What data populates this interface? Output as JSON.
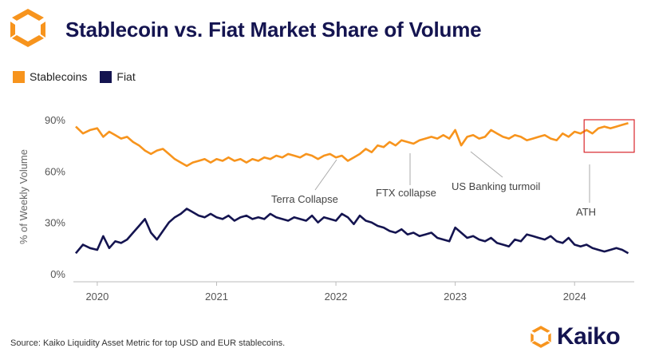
{
  "header": {
    "title": "Stablecoin vs. Fiat Market Share of Volume"
  },
  "footer": {
    "source": "Source: Kaiko Liquidity Asset Metric for top USD and EUR stablecoins.",
    "brand": "Kaiko"
  },
  "colors": {
    "stablecoins": "#f7941d",
    "fiat": "#141450",
    "highlight_box": "#d9262c"
  },
  "chart_data": {
    "type": "line",
    "title": "Stablecoin vs. Fiat Market Share of Volume",
    "xlabel": "",
    "ylabel": "% of Weekly Volume",
    "xlim": [
      2019.8,
      2024.5
    ],
    "ylim": [
      0,
      90
    ],
    "y_ticks": [
      0,
      30,
      60,
      90
    ],
    "y_tick_labels": [
      "0%",
      "30%",
      "60%",
      "90%"
    ],
    "x_ticks": [
      2020,
      2021,
      2022,
      2023,
      2024
    ],
    "x_tick_labels": [
      "2020",
      "2021",
      "2022",
      "2023",
      "2024"
    ],
    "grid": false,
    "legend_position": "top-left",
    "series": [
      {
        "name": "Stablecoins",
        "x": [
          2019.82,
          2019.88,
          2019.94,
          2020.0,
          2020.05,
          2020.1,
          2020.15,
          2020.2,
          2020.25,
          2020.3,
          2020.35,
          2020.4,
          2020.45,
          2020.5,
          2020.55,
          2020.6,
          2020.65,
          2020.7,
          2020.75,
          2020.8,
          2020.85,
          2020.9,
          2020.95,
          2021.0,
          2021.05,
          2021.1,
          2021.15,
          2021.2,
          2021.25,
          2021.3,
          2021.35,
          2021.4,
          2021.45,
          2021.5,
          2021.55,
          2021.6,
          2021.65,
          2021.7,
          2021.75,
          2021.8,
          2021.85,
          2021.9,
          2021.95,
          2022.0,
          2022.05,
          2022.1,
          2022.15,
          2022.2,
          2022.25,
          2022.3,
          2022.35,
          2022.4,
          2022.45,
          2022.5,
          2022.55,
          2022.6,
          2022.65,
          2022.7,
          2022.75,
          2022.8,
          2022.85,
          2022.9,
          2022.95,
          2023.0,
          2023.05,
          2023.1,
          2023.15,
          2023.2,
          2023.25,
          2023.3,
          2023.35,
          2023.4,
          2023.45,
          2023.5,
          2023.55,
          2023.6,
          2023.65,
          2023.7,
          2023.75,
          2023.8,
          2023.85,
          2023.9,
          2023.95,
          2024.0,
          2024.05,
          2024.1,
          2024.15,
          2024.2,
          2024.25,
          2024.3,
          2024.35,
          2024.4,
          2024.45
        ],
        "values": [
          86,
          82,
          84,
          85,
          80,
          83,
          81,
          79,
          80,
          77,
          75,
          72,
          70,
          72,
          73,
          70,
          67,
          65,
          63,
          65,
          66,
          67,
          65,
          67,
          66,
          68,
          66,
          67,
          65,
          67,
          66,
          68,
          67,
          69,
          68,
          70,
          69,
          68,
          70,
          69,
          67,
          69,
          70,
          68,
          69,
          66,
          68,
          70,
          73,
          71,
          75,
          74,
          77,
          75,
          78,
          77,
          76,
          78,
          79,
          80,
          79,
          81,
          79,
          84,
          75,
          80,
          81,
          79,
          80,
          84,
          82,
          80,
          79,
          81,
          80,
          78,
          79,
          80,
          81,
          79,
          78,
          82,
          80,
          83,
          82,
          84,
          82,
          85,
          86,
          85,
          86,
          87,
          88
        ]
      },
      {
        "name": "Fiat",
        "x": [
          2019.82,
          2019.88,
          2019.94,
          2020.0,
          2020.05,
          2020.1,
          2020.15,
          2020.2,
          2020.25,
          2020.3,
          2020.35,
          2020.4,
          2020.45,
          2020.5,
          2020.55,
          2020.6,
          2020.65,
          2020.7,
          2020.75,
          2020.8,
          2020.85,
          2020.9,
          2020.95,
          2021.0,
          2021.05,
          2021.1,
          2021.15,
          2021.2,
          2021.25,
          2021.3,
          2021.35,
          2021.4,
          2021.45,
          2021.5,
          2021.55,
          2021.6,
          2021.65,
          2021.7,
          2021.75,
          2021.8,
          2021.85,
          2021.9,
          2021.95,
          2022.0,
          2022.05,
          2022.1,
          2022.15,
          2022.2,
          2022.25,
          2022.3,
          2022.35,
          2022.4,
          2022.45,
          2022.5,
          2022.55,
          2022.6,
          2022.65,
          2022.7,
          2022.75,
          2022.8,
          2022.85,
          2022.9,
          2022.95,
          2023.0,
          2023.05,
          2023.1,
          2023.15,
          2023.2,
          2023.25,
          2023.3,
          2023.35,
          2023.4,
          2023.45,
          2023.5,
          2023.55,
          2023.6,
          2023.65,
          2023.7,
          2023.75,
          2023.8,
          2023.85,
          2023.9,
          2023.95,
          2024.0,
          2024.05,
          2024.1,
          2024.15,
          2024.2,
          2024.25,
          2024.3,
          2024.35,
          2024.4,
          2024.45
        ],
        "values": [
          12,
          17,
          15,
          14,
          22,
          15,
          19,
          18,
          20,
          24,
          28,
          32,
          24,
          20,
          25,
          30,
          33,
          35,
          38,
          36,
          34,
          33,
          35,
          33,
          32,
          34,
          31,
          33,
          34,
          32,
          33,
          32,
          35,
          33,
          32,
          31,
          33,
          32,
          31,
          34,
          30,
          33,
          32,
          31,
          35,
          33,
          29,
          34,
          31,
          30,
          28,
          27,
          25,
          24,
          26,
          23,
          24,
          22,
          23,
          24,
          21,
          20,
          19,
          27,
          24,
          21,
          22,
          20,
          19,
          21,
          18,
          17,
          16,
          20,
          19,
          23,
          22,
          21,
          20,
          22,
          19,
          18,
          21,
          17,
          16,
          17,
          15,
          14,
          13,
          14,
          15,
          14,
          12
        ]
      }
    ],
    "annotations": [
      {
        "text": "Terra Collapse",
        "x": 2022.3,
        "y": 71
      },
      {
        "text": "FTX collapse",
        "x": 2022.63,
        "y": 77
      },
      {
        "text": "US Banking turmoil",
        "x": 2023.15,
        "y": 78
      },
      {
        "text": "ATH",
        "x": 2024.23,
        "y": 74
      }
    ],
    "highlight_region": {
      "x": [
        2024.08,
        2024.5
      ],
      "y": [
        71,
        90
      ]
    }
  }
}
